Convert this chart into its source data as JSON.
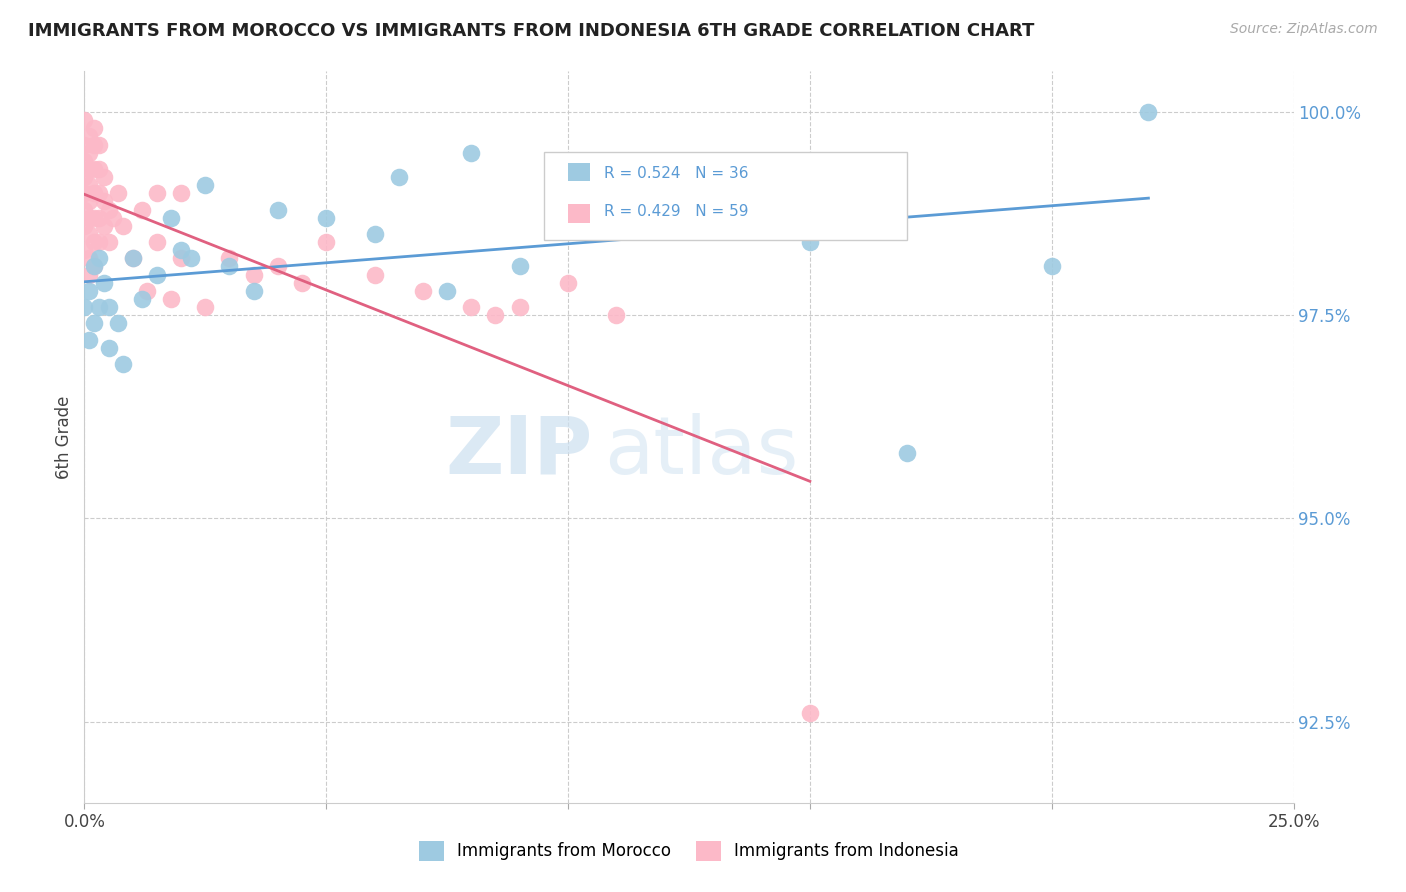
{
  "title": "IMMIGRANTS FROM MOROCCO VS IMMIGRANTS FROM INDONESIA 6TH GRADE CORRELATION CHART",
  "source": "Source: ZipAtlas.com",
  "ylabel": "6th Grade",
  "xlim": [
    0.0,
    0.25
  ],
  "ylim": [
    0.915,
    1.005
  ],
  "xtick_positions": [
    0.0,
    0.05,
    0.1,
    0.15,
    0.2,
    0.25
  ],
  "xtick_labels": [
    "0.0%",
    "",
    "",
    "",
    "",
    "25.0%"
  ],
  "ytick_positions": [
    0.925,
    0.95,
    0.975,
    1.0
  ],
  "ytick_labels": [
    "92.5%",
    "95.0%",
    "97.5%",
    "100.0%"
  ],
  "morocco_color": "#9ecae1",
  "indonesia_color": "#fcb9c8",
  "morocco_line_color": "#5b9bd5",
  "indonesia_line_color": "#e06080",
  "morocco_R": 0.524,
  "morocco_N": 36,
  "indonesia_R": 0.429,
  "indonesia_N": 59,
  "watermark_zip": "ZIP",
  "watermark_atlas": "atlas",
  "morocco_points": [
    [
      0.0,
      0.976
    ],
    [
      0.001,
      0.972
    ],
    [
      0.001,
      0.978
    ],
    [
      0.002,
      0.974
    ],
    [
      0.002,
      0.981
    ],
    [
      0.003,
      0.976
    ],
    [
      0.003,
      0.982
    ],
    [
      0.004,
      0.979
    ],
    [
      0.005,
      0.971
    ],
    [
      0.005,
      0.976
    ],
    [
      0.007,
      0.974
    ],
    [
      0.008,
      0.969
    ],
    [
      0.01,
      0.982
    ],
    [
      0.012,
      0.977
    ],
    [
      0.015,
      0.98
    ],
    [
      0.018,
      0.987
    ],
    [
      0.02,
      0.983
    ],
    [
      0.022,
      0.982
    ],
    [
      0.025,
      0.991
    ],
    [
      0.03,
      0.981
    ],
    [
      0.035,
      0.978
    ],
    [
      0.04,
      0.988
    ],
    [
      0.05,
      0.987
    ],
    [
      0.06,
      0.985
    ],
    [
      0.065,
      0.992
    ],
    [
      0.075,
      0.978
    ],
    [
      0.08,
      0.995
    ],
    [
      0.09,
      0.981
    ],
    [
      0.1,
      0.992
    ],
    [
      0.12,
      0.991
    ],
    [
      0.14,
      0.99
    ],
    [
      0.15,
      0.984
    ],
    [
      0.16,
      0.988
    ],
    [
      0.17,
      0.958
    ],
    [
      0.2,
      0.981
    ],
    [
      0.22,
      1.0
    ]
  ],
  "indonesia_points": [
    [
      0.0,
      0.999
    ],
    [
      0.0,
      0.996
    ],
    [
      0.0,
      0.994
    ],
    [
      0.0,
      0.992
    ],
    [
      0.0,
      0.99
    ],
    [
      0.0,
      0.988
    ],
    [
      0.0,
      0.986
    ],
    [
      0.0,
      0.983
    ],
    [
      0.001,
      0.997
    ],
    [
      0.001,
      0.995
    ],
    [
      0.001,
      0.993
    ],
    [
      0.001,
      0.991
    ],
    [
      0.001,
      0.989
    ],
    [
      0.001,
      0.987
    ],
    [
      0.001,
      0.985
    ],
    [
      0.001,
      0.982
    ],
    [
      0.001,
      0.98
    ],
    [
      0.002,
      0.998
    ],
    [
      0.002,
      0.996
    ],
    [
      0.002,
      0.993
    ],
    [
      0.002,
      0.99
    ],
    [
      0.002,
      0.987
    ],
    [
      0.002,
      0.984
    ],
    [
      0.002,
      0.981
    ],
    [
      0.003,
      0.996
    ],
    [
      0.003,
      0.993
    ],
    [
      0.003,
      0.99
    ],
    [
      0.003,
      0.987
    ],
    [
      0.003,
      0.984
    ],
    [
      0.004,
      0.992
    ],
    [
      0.004,
      0.989
    ],
    [
      0.004,
      0.986
    ],
    [
      0.005,
      0.988
    ],
    [
      0.005,
      0.984
    ],
    [
      0.006,
      0.987
    ],
    [
      0.007,
      0.99
    ],
    [
      0.008,
      0.986
    ],
    [
      0.01,
      0.982
    ],
    [
      0.012,
      0.988
    ],
    [
      0.013,
      0.978
    ],
    [
      0.015,
      0.99
    ],
    [
      0.015,
      0.984
    ],
    [
      0.018,
      0.977
    ],
    [
      0.02,
      0.99
    ],
    [
      0.02,
      0.982
    ],
    [
      0.025,
      0.976
    ],
    [
      0.03,
      0.982
    ],
    [
      0.035,
      0.98
    ],
    [
      0.04,
      0.981
    ],
    [
      0.045,
      0.979
    ],
    [
      0.05,
      0.984
    ],
    [
      0.06,
      0.98
    ],
    [
      0.07,
      0.978
    ],
    [
      0.08,
      0.976
    ],
    [
      0.085,
      0.975
    ],
    [
      0.09,
      0.976
    ],
    [
      0.1,
      0.979
    ],
    [
      0.11,
      0.975
    ],
    [
      0.15,
      0.926
    ]
  ]
}
